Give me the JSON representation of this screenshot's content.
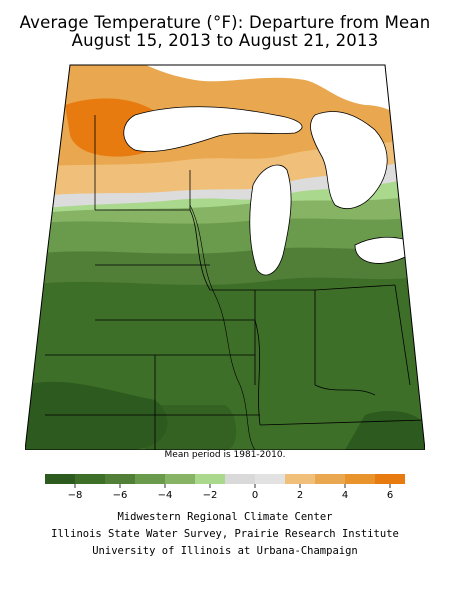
{
  "title": {
    "line1": "Average Temperature (°F): Departure from Mean",
    "line2": "August 15, 2013 to August 21, 2013"
  },
  "map": {
    "region": "Midwest",
    "variable": "Average Temperature (°F): Departure from Mean"
  },
  "note": "Mean period is 1981-2010.",
  "legend": {
    "tick_labels": [
      "−8",
      "−6",
      "−4",
      "−2",
      "0",
      "2",
      "4",
      "6"
    ],
    "bins": [
      {
        "color": "#2d5a1e"
      },
      {
        "color": "#3e6f29"
      },
      {
        "color": "#517f38"
      },
      {
        "color": "#6a9a4c"
      },
      {
        "color": "#86b464"
      },
      {
        "color": "#aad88d"
      },
      {
        "color": "#d9d9d9"
      },
      {
        "color": "#e2e2e2"
      },
      {
        "color": "#f0c07a"
      },
      {
        "color": "#e9a850"
      },
      {
        "color": "#e8932c"
      },
      {
        "color": "#e87b10"
      }
    ]
  },
  "credits": {
    "line1": "Midwestern Regional Climate Center",
    "line2": "Illinois State Water Survey, Prairie Research Institute",
    "line3": "University of Illinois at Urbana-Champaign"
  }
}
